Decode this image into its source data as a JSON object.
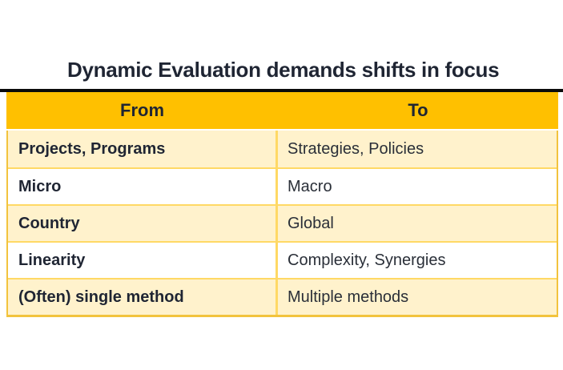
{
  "title": "Dynamic Evaluation demands shifts in focus",
  "colors": {
    "header_bg": "#FFC000",
    "row_alt_bg": "#FFF2CC",
    "row_bg": "#FFFFFF",
    "inner_border": "#FFD965",
    "outer_border": "#F2C33D",
    "top_rule": "#0A0A0A",
    "text_dark": "#1F2533"
  },
  "table": {
    "columns": [
      {
        "label": "From"
      },
      {
        "label": "To"
      }
    ],
    "rows": [
      {
        "from": "Projects, Programs",
        "to": "Strategies, Policies"
      },
      {
        "from": "Micro",
        "to": "Macro"
      },
      {
        "from": "Country",
        "to": "Global"
      },
      {
        "from": "Linearity",
        "to": "Complexity, Synergies"
      },
      {
        "from": "(Often) single method",
        "to": "Multiple methods"
      }
    ]
  }
}
